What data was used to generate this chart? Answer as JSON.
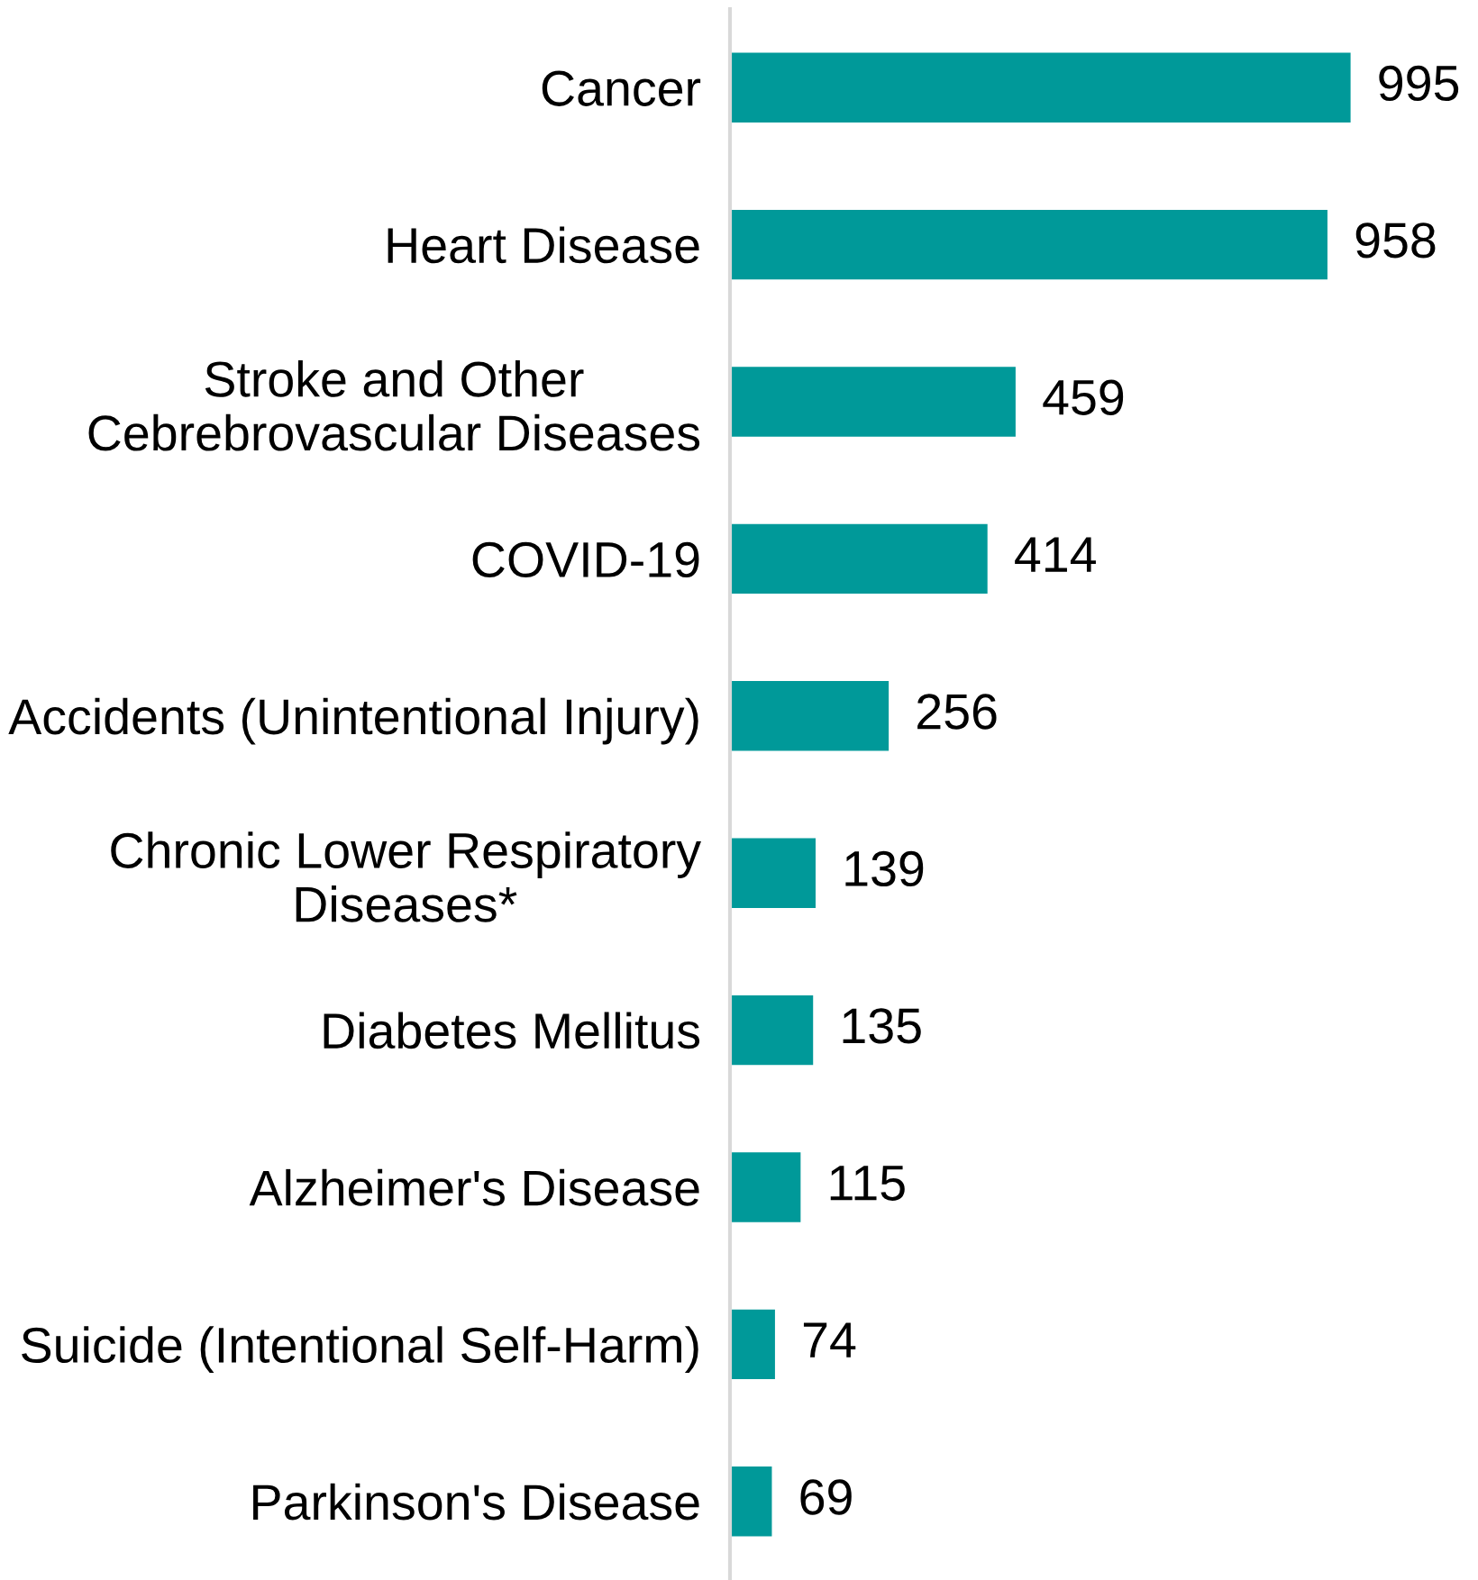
{
  "chart_data": {
    "type": "bar",
    "orientation": "horizontal",
    "categories": [
      "Cancer",
      "Heart Disease",
      "Stroke and Other\nCebrebrovascular Diseases",
      "COVID-19",
      "Accidents (Unintentional Injury)",
      "Chronic Lower Respiratory\nDiseases*",
      "Diabetes Mellitus",
      "Alzheimer's Disease",
      "Suicide (Intentional Self-Harm)",
      "Parkinson's Disease"
    ],
    "values": [
      995,
      958,
      459,
      414,
      256,
      139,
      135,
      115,
      74,
      69
    ],
    "color": "#009999",
    "data_labels": true
  }
}
